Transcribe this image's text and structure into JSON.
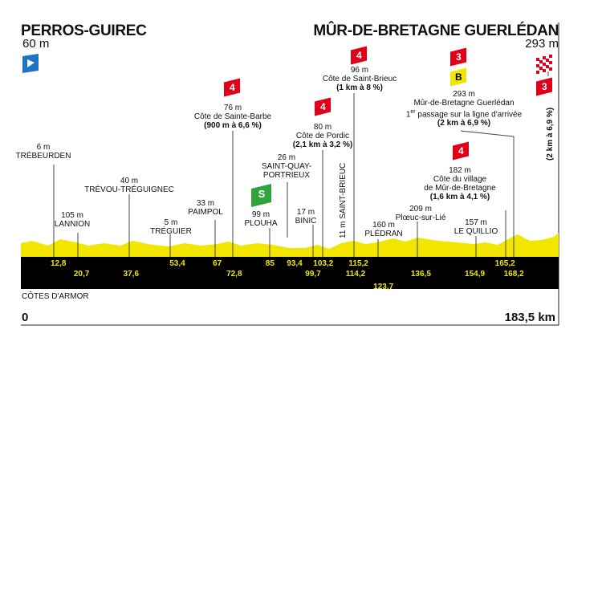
{
  "start": {
    "name": "PERROS-GUIREC",
    "altitude": "60 m"
  },
  "finish": {
    "name": "MÛR-DE-BRETAGNE GUERLÉDAN",
    "altitude": "293 m"
  },
  "region": "CÔTES D'ARMOR",
  "distance_start": "0",
  "distance_end": "183,5 km",
  "colors": {
    "profile_fill": "#f2e600",
    "band": "#000000",
    "km_text": "#f2e600",
    "climb_flag": "#e1001a",
    "bonus_flag": "#f2e600",
    "sprint_flag": "#2fa33c",
    "start_marker": "#1f73c6"
  },
  "icons": {
    "start": "play-triangle-icon",
    "finish": "checkered-flag-icon",
    "sprint": "green-sprint-icon"
  },
  "km_marks": [
    {
      "label": "12,8",
      "row": "top"
    },
    {
      "label": "20,7",
      "row": "bottom"
    },
    {
      "label": "37,6",
      "row": "bottom"
    },
    {
      "label": "53,4",
      "row": "top"
    },
    {
      "label": "67",
      "row": "top"
    },
    {
      "label": "72,8",
      "row": "bottom"
    },
    {
      "label": "85",
      "row": "top"
    },
    {
      "label": "93,4",
      "row": "top"
    },
    {
      "label": "99,7",
      "row": "bottom"
    },
    {
      "label": "103,2",
      "row": "top"
    },
    {
      "label": "114,2",
      "row": "bottom"
    },
    {
      "label": "115,2",
      "row": "top"
    },
    {
      "label": "123,7",
      "row": "lower"
    },
    {
      "label": "136,5",
      "row": "bottom"
    },
    {
      "label": "154,9",
      "row": "bottom"
    },
    {
      "label": "165,2",
      "row": "top"
    },
    {
      "label": "168,2",
      "row": "bottom"
    }
  ],
  "towns": [
    {
      "alt": "6 m",
      "name": "TRÉBEURDEN"
    },
    {
      "alt": "105 m",
      "name": "LANNION"
    },
    {
      "alt": "40 m",
      "name": "TRÉVOU-TRÉGUIGNEC"
    },
    {
      "alt": "5 m",
      "name": "TRÉGUIER"
    },
    {
      "alt": "33 m",
      "name": "PAIMPOL"
    },
    {
      "alt": "99 m",
      "name": "PLOUHA"
    },
    {
      "alt": "26 m",
      "name": "SAINT-QUAY-",
      "name2": "PORTRIEUX"
    },
    {
      "alt": "17 m",
      "name": "BINIC"
    },
    {
      "alt": "160 m",
      "name": "PLÉDRAN"
    },
    {
      "alt": "209 m",
      "name": "Plœuc-sur-Lié"
    },
    {
      "alt": "157 m",
      "name": "LE QUILLIO"
    }
  ],
  "saint_brieuc": "11 m  SAINT-BRIEUC",
  "climbs": [
    {
      "cat": "4",
      "alt": "76 m",
      "name": "Côte de Sainte-Barbe",
      "detail": "(900 m à 6,6 %)"
    },
    {
      "cat": "4",
      "alt": "80 m",
      "name": "Côte de Pordic",
      "detail": "(2,1 km à 3,2 %)"
    },
    {
      "cat": "4",
      "alt": "96 m",
      "name": "Côte de Saint-Brieuc",
      "detail": "(1 km à 8 %)"
    },
    {
      "cat": "4",
      "alt": "182 m",
      "name": "Côte du village",
      "name2": "de Mûr-de-Bretagne",
      "detail": "(1,6 km à 4,1 %)"
    },
    {
      "cat": "3",
      "bonus": "B",
      "alt": "293 m",
      "name": "Mûr-de-Bretagne Guerlédan",
      "name2_sup": "er",
      "name2_pre": "1",
      "name2": " passage sur la ligne d'arrivée",
      "detail": "(2 km à 6,9 %)"
    }
  ],
  "final_climb": {
    "cat": "3",
    "detail": "(2 km à 6,9 %)"
  },
  "sprint": {
    "label": "S"
  }
}
